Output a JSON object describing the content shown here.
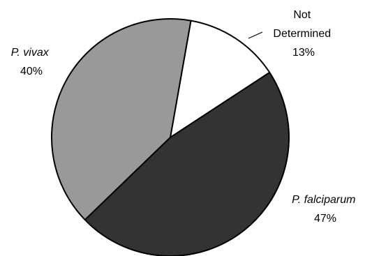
{
  "chart_data": {
    "type": "pie",
    "slices": [
      {
        "name_lines": [
          "Not",
          "Determined"
        ],
        "italic": false,
        "value": 13,
        "value_label": "13%",
        "color": "#ffffff"
      },
      {
        "name_lines": [
          "P. falciparum"
        ],
        "italic": true,
        "value": 47,
        "value_label": "47%",
        "color": "#333333"
      },
      {
        "name_lines": [
          "P. vivax"
        ],
        "italic": true,
        "value": 40,
        "value_label": "40%",
        "color": "#999999"
      }
    ],
    "start_angle_deg": 10,
    "direction": "clockwise",
    "slice_outline_color": "#000000",
    "legend": "none",
    "labels": "outside with leader line on small slice"
  }
}
